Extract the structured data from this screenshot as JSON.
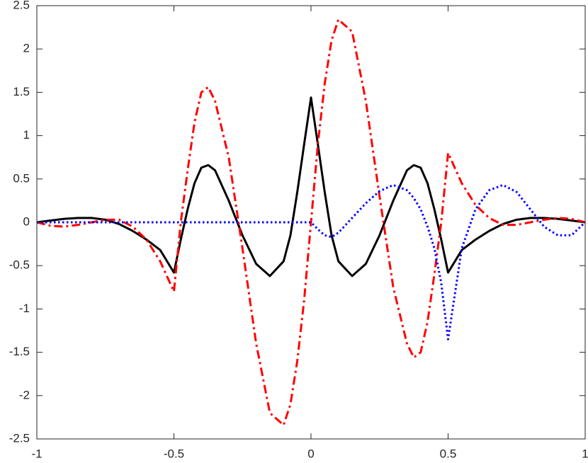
{
  "chart_data": {
    "type": "line",
    "x": [
      -1,
      -0.95,
      -0.9,
      -0.85,
      -0.8,
      -0.75,
      -0.7,
      -0.65,
      -0.6,
      -0.55,
      -0.5,
      -0.475,
      -0.45,
      -0.425,
      -0.4,
      -0.375,
      -0.35,
      -0.3,
      -0.25,
      -0.2,
      -0.15,
      -0.1,
      -0.075,
      -0.05,
      -0.025,
      0,
      0.025,
      0.05,
      0.075,
      0.1,
      0.15,
      0.2,
      0.25,
      0.3,
      0.35,
      0.375,
      0.4,
      0.425,
      0.45,
      0.475,
      0.5,
      0.55,
      0.6,
      0.65,
      0.7,
      0.75,
      0.8,
      0.85,
      0.9,
      0.95,
      1
    ],
    "series": [
      {
        "color": "#000000",
        "line_style": "solid",
        "values": [
          0,
          0.02,
          0.04,
          0.05,
          0.05,
          0.03,
          -0.02,
          -0.1,
          -0.2,
          -0.32,
          -0.58,
          -0.2,
          0.15,
          0.45,
          0.63,
          0.66,
          0.6,
          0.25,
          -0.15,
          -0.48,
          -0.62,
          -0.45,
          -0.15,
          0.35,
          0.9,
          1.44,
          0.9,
          0.35,
          -0.15,
          -0.45,
          -0.62,
          -0.48,
          -0.15,
          0.25,
          0.6,
          0.66,
          0.63,
          0.45,
          0.15,
          -0.2,
          -0.58,
          -0.32,
          -0.2,
          -0.1,
          -0.02,
          0.03,
          0.05,
          0.05,
          0.04,
          0.02,
          0
        ]
      },
      {
        "color": "#ff0000",
        "line_style": "dashdot",
        "values": [
          0,
          -0.04,
          -0.05,
          -0.03,
          0,
          0.03,
          0.03,
          -0.05,
          -0.2,
          -0.45,
          -0.8,
          0,
          0.6,
          1.15,
          1.5,
          1.56,
          1.4,
          0.75,
          -0.3,
          -1.4,
          -2.2,
          -2.34,
          -2.1,
          -1.6,
          -0.9,
          0,
          0.9,
          1.6,
          2.1,
          2.34,
          2.2,
          1.4,
          0.3,
          -0.75,
          -1.4,
          -1.56,
          -1.5,
          -1.15,
          -0.6,
          0,
          0.8,
          0.45,
          0.2,
          0.05,
          -0.03,
          -0.03,
          0,
          0.03,
          0.05,
          0.04,
          0
        ]
      },
      {
        "color": "#0000ff",
        "line_style": "dotted",
        "values": [
          0,
          0,
          0,
          0,
          0,
          0,
          0,
          0,
          0,
          0,
          0,
          0,
          0,
          0,
          0,
          0,
          0,
          0,
          0,
          0,
          0,
          0,
          0,
          0,
          0,
          0,
          -0.08,
          -0.15,
          -0.17,
          -0.12,
          0.05,
          0.22,
          0.36,
          0.43,
          0.37,
          0.28,
          0.15,
          -0.05,
          -0.3,
          -0.7,
          -1.35,
          -0.3,
          0.15,
          0.37,
          0.43,
          0.35,
          0.15,
          -0.05,
          -0.15,
          -0.15,
          0
        ]
      }
    ],
    "xlim": [
      -1,
      1
    ],
    "xticks": [
      -1,
      -0.5,
      0,
      0.5,
      1
    ],
    "ylim": [
      -2.5,
      2.5
    ],
    "yticks": [
      -2.5,
      -2,
      -1.5,
      -1,
      -0.5,
      0,
      0.5,
      1,
      1.5,
      2,
      2.5
    ],
    "grid": false
  }
}
